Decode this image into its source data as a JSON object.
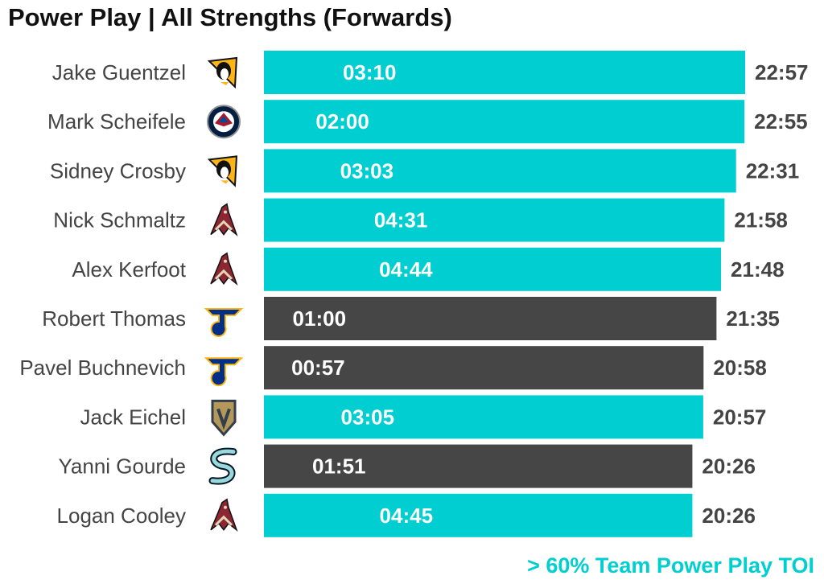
{
  "title": "Power Play | All Strengths (Forwards)",
  "footnote": "> 60% Team Power Play TOI",
  "colors": {
    "highlight": "#00CED1",
    "normal": "#464646",
    "label_text": "#444444",
    "bar_text": "#ffffff",
    "footnote": "#00CED1"
  },
  "chart_data": {
    "type": "bar",
    "orientation": "horizontal",
    "categories": [
      "Jake Guentzel",
      "Mark Scheifele",
      "Sidney Crosby",
      "Nick Schmaltz",
      "Alex Kerfoot",
      "Robert Thomas",
      "Pavel Buchnevich",
      "Jack Eichel",
      "Yanni Gourde",
      "Logan Cooley"
    ],
    "teams": [
      "pittsburgh-penguins",
      "winnipeg-jets",
      "pittsburgh-penguins",
      "arizona-coyotes",
      "arizona-coyotes",
      "st-louis-blues",
      "st-louis-blues",
      "vegas-golden-knights",
      "seattle-kraken",
      "arizona-coyotes"
    ],
    "values": [
      "22:57",
      "22:55",
      "22:31",
      "21:58",
      "21:48",
      "21:35",
      "20:58",
      "20:57",
      "20:26",
      "20:26"
    ],
    "pp_toi": [
      "03:10",
      "02:00",
      "03:03",
      "04:31",
      "04:44",
      "01:00",
      "00:57",
      "03:05",
      "01:51",
      "04:45"
    ],
    "highlight": [
      true,
      true,
      true,
      true,
      true,
      false,
      false,
      true,
      false,
      true
    ],
    "grid": false,
    "legend": "none"
  }
}
